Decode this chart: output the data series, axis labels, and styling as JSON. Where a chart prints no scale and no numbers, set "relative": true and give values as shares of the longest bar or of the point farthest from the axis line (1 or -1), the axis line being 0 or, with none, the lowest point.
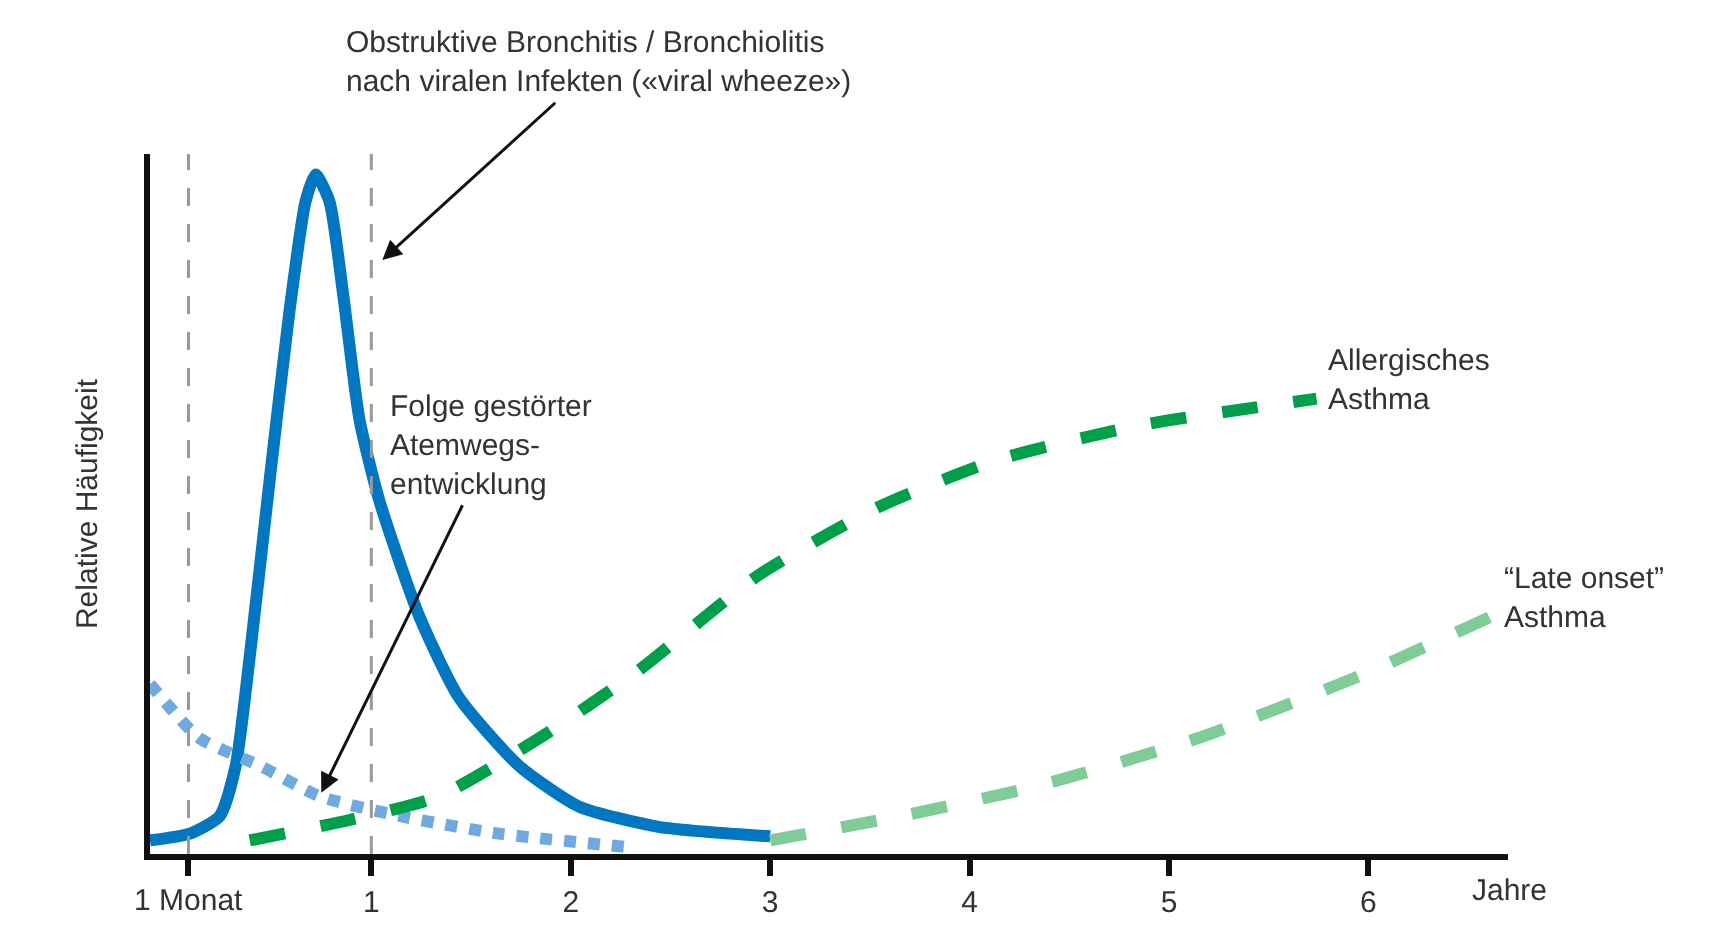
{
  "chart_data": {
    "type": "line",
    "relative": true,
    "ylabel": "Relative Häufigkeit",
    "xlabel": "Jahre",
    "xlim": [
      -0.11,
      6.7
    ],
    "xticks": [
      {
        "value": 0.083,
        "label": null
      },
      1,
      2,
      3,
      4,
      5,
      6
    ],
    "legend": false,
    "marker": "none",
    "annotations": [
      {
        "text": "Obstruktive Bronchitis / Bronchiolitis\nnach viralen Infekten («viral wheeze»)",
        "x": 1.04,
        "y": 0.87
      },
      {
        "text": "Folge gestörter\nAtemwegs-\nentwicklung",
        "x": 0.74,
        "y": 0.085
      }
    ],
    "series": [
      {
        "color": "#0077c0",
        "line_style": "solid",
        "x": [
          -0.11,
          0.09,
          0.24,
          0.32,
          0.39,
          0.49,
          0.59,
          0.67,
          0.72,
          0.79,
          0.86,
          0.94,
          1.04,
          1.24,
          1.44,
          1.74,
          2.04,
          2.44,
          3.0
        ],
        "values": [
          0.02,
          0.03,
          0.056,
          0.13,
          0.29,
          0.55,
          0.8,
          0.96,
          1.0,
          0.96,
          0.82,
          0.64,
          0.52,
          0.35,
          0.23,
          0.13,
          0.07,
          0.04,
          0.026
        ]
      },
      {
        "color": "#70a8e0",
        "line_style": "dotted",
        "x": [
          -0.11,
          0.14,
          0.44,
          0.74,
          1.14,
          1.64,
          2.29
        ],
        "values": [
          0.25,
          0.17,
          0.13,
          0.085,
          0.056,
          0.03,
          0.01
        ]
      },
      {
        "name": "Allergisches\nAsthma",
        "color": "#00a04a",
        "line_style": "dashed",
        "x": [
          0.39,
          0.89,
          1.34,
          1.84,
          2.34,
          2.94,
          3.54,
          4.14,
          4.84,
          5.74
        ],
        "values": [
          0.02,
          0.05,
          0.085,
          0.17,
          0.27,
          0.41,
          0.51,
          0.58,
          0.63,
          0.67
        ]
      },
      {
        "name": "“Late onset”\nAsthma",
        "color": "#80cc98",
        "line_style": "dashed",
        "x": [
          3.0,
          3.64,
          4.34,
          5.14,
          5.94,
          6.62
        ],
        "values": [
          0.02,
          0.055,
          0.1,
          0.17,
          0.26,
          0.35
        ]
      }
    ],
    "ref_lines": [
      {
        "axis": "x",
        "value": 0.083,
        "label": "1 Monat",
        "color": "#999999",
        "line_style": "dashed"
      },
      {
        "axis": "x",
        "value": 1,
        "color": "#999999",
        "line_style": "dashed"
      }
    ]
  }
}
